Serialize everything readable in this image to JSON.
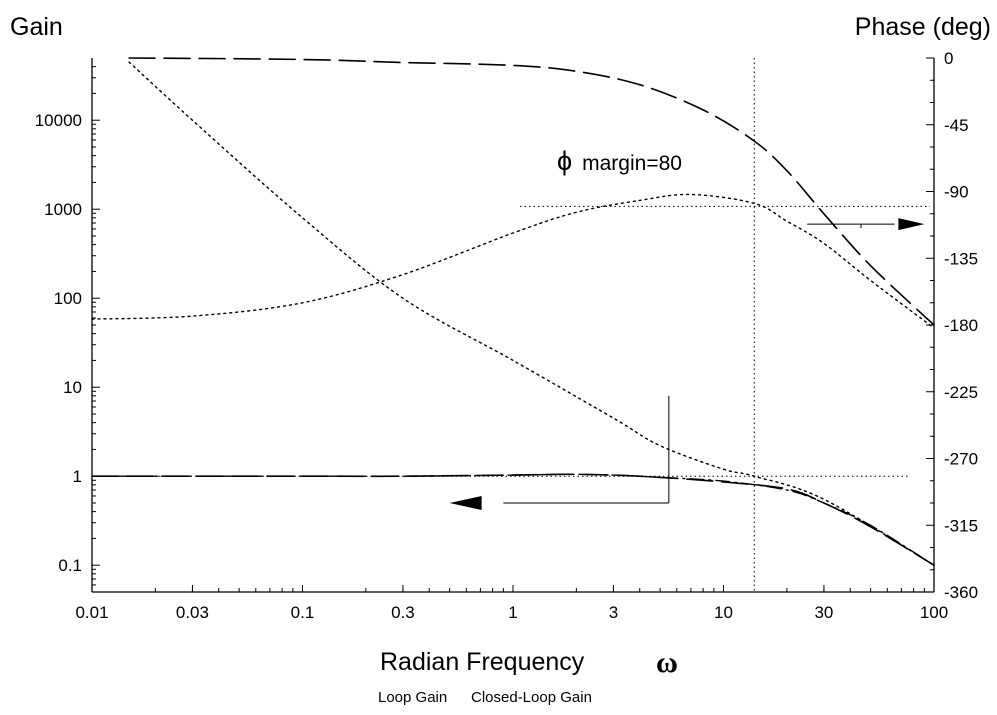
{
  "chart_data": {
    "type": "line",
    "xlabel": "Radian Frequency",
    "xlabel_symbol": "ω",
    "ylabel_left": "Gain",
    "ylabel_right": "Phase (deg)",
    "x_scale": "log",
    "xlim": [
      0.01,
      100
    ],
    "ylim_left": [
      0.05,
      50000
    ],
    "ylim_right": [
      -360,
      0
    ],
    "x_ticks": [
      0.01,
      0.03,
      0.1,
      0.3,
      1,
      3,
      10,
      30,
      100
    ],
    "x_tick_labels": [
      "0.01",
      "0.03",
      "0.1",
      "0.3",
      "1",
      "3",
      "10",
      "30",
      "100"
    ],
    "y_left_ticks": [
      0.1,
      1,
      10,
      100,
      1000,
      10000
    ],
    "y_left_tick_labels": [
      "0.1",
      "1",
      "10",
      "100",
      "1000",
      "10000"
    ],
    "y_right_ticks": [
      0,
      -45,
      -90,
      -135,
      -180,
      -225,
      -270,
      -315,
      -360
    ],
    "y_right_tick_labels": [
      "0",
      "-45",
      "-90",
      "-135",
      "-180",
      "-225",
      "-270",
      "-315",
      "-360"
    ],
    "annotation": {
      "symbol": "ϕ",
      "text": "margin=80"
    },
    "legend": [
      "Loop Gain",
      "Closed-Loop Gain"
    ],
    "series": [
      {
        "name": "Loop Gain",
        "axis": "left",
        "style": "dotted",
        "x": [
          0.015,
          0.03,
          0.1,
          0.3,
          1,
          3,
          5,
          10,
          14,
          30,
          100
        ],
        "y": [
          45000,
          10000,
          800,
          100,
          20,
          4.5,
          2.2,
          1.2,
          1.0,
          0.55,
          0.1
        ]
      },
      {
        "name": "Closed-Loop Gain",
        "axis": "left",
        "style": "dash-dot",
        "x": [
          0.01,
          0.1,
          0.3,
          1,
          1.8,
          3,
          5,
          10,
          20,
          30,
          50,
          100
        ],
        "y": [
          1.0,
          1.0,
          1.0,
          1.03,
          1.05,
          1.03,
          0.97,
          0.88,
          0.7,
          0.5,
          0.28,
          0.1
        ]
      },
      {
        "axis": "left",
        "style": "dashed",
        "x": [
          0.01,
          0.1,
          0.3,
          1,
          1.8,
          3,
          5,
          10,
          20,
          30,
          50,
          100
        ],
        "y": [
          1.0,
          1.0,
          1.0,
          1.03,
          1.05,
          1.03,
          0.97,
          0.86,
          0.72,
          0.5,
          0.27,
          0.1
        ]
      },
      {
        "axis": "right",
        "style": "dashed",
        "x": [
          0.015,
          0.1,
          0.3,
          1,
          2,
          4,
          8,
          14,
          20,
          30,
          50,
          100
        ],
        "y": [
          0,
          -1,
          -3,
          -5,
          -9,
          -18,
          -35,
          -56,
          -76,
          -105,
          -140,
          -180
        ]
      },
      {
        "axis": "right",
        "style": "dotted",
        "x": [
          0.01,
          0.03,
          0.1,
          0.3,
          1,
          2,
          4,
          7,
          14,
          20,
          30,
          50,
          100
        ],
        "y": [
          -176,
          -174,
          -165,
          -146,
          -118,
          -104,
          -96,
          -92,
          -98,
          -110,
          -125,
          -150,
          -182
        ]
      }
    ],
    "reference_lines": {
      "crossover_frequency": 14,
      "unity_gain": 1,
      "phase_level": -100
    }
  }
}
